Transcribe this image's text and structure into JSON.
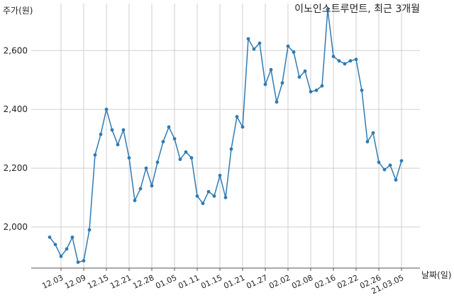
{
  "chart_data": {
    "type": "line",
    "title": "이노인스트루먼트, 최근 3개월",
    "ylabel": "주가(원)",
    "xlabel": "날짜(일)",
    "ylim": [
      1860,
      2760
    ],
    "yticks": [
      2000,
      2200,
      2400,
      2600
    ],
    "ytick_labels": [
      "2,000",
      "2,200",
      "2,400",
      "2,600"
    ],
    "xtick_labels": [
      "12.03",
      "12.09",
      "12.15",
      "12.21",
      "12.28",
      "01.05",
      "01.11",
      "01.15",
      "01.21",
      "01.27",
      "02.02",
      "02.08",
      "02.16",
      "02.22",
      "02.26",
      "21.03.05"
    ],
    "xtick_index": [
      2,
      6,
      10,
      14,
      18,
      22,
      26,
      30,
      34,
      38,
      42,
      46,
      50,
      54,
      58,
      62
    ],
    "grid": true,
    "line_color": "#2e7bb4",
    "series": [
      {
        "values": [
          1965,
          1940,
          1900,
          1925,
          1965,
          1880,
          1885,
          1990,
          2245,
          2315,
          2400,
          2330,
          2280,
          2330,
          2235,
          2090,
          2130,
          2200,
          2140,
          2220,
          2290,
          2340,
          2300,
          2230,
          2255,
          2235,
          2105,
          2080,
          2120,
          2105,
          2175,
          2100,
          2265,
          2375,
          2340,
          2640,
          2605,
          2625,
          2485,
          2535,
          2425,
          2490,
          2615,
          2595,
          2510,
          2530,
          2460,
          2465,
          2480,
          2740,
          2580,
          2565,
          2555,
          2565,
          2570,
          2465,
          2290,
          2320,
          2220,
          2195,
          2210,
          2160,
          2225
        ]
      }
    ]
  }
}
